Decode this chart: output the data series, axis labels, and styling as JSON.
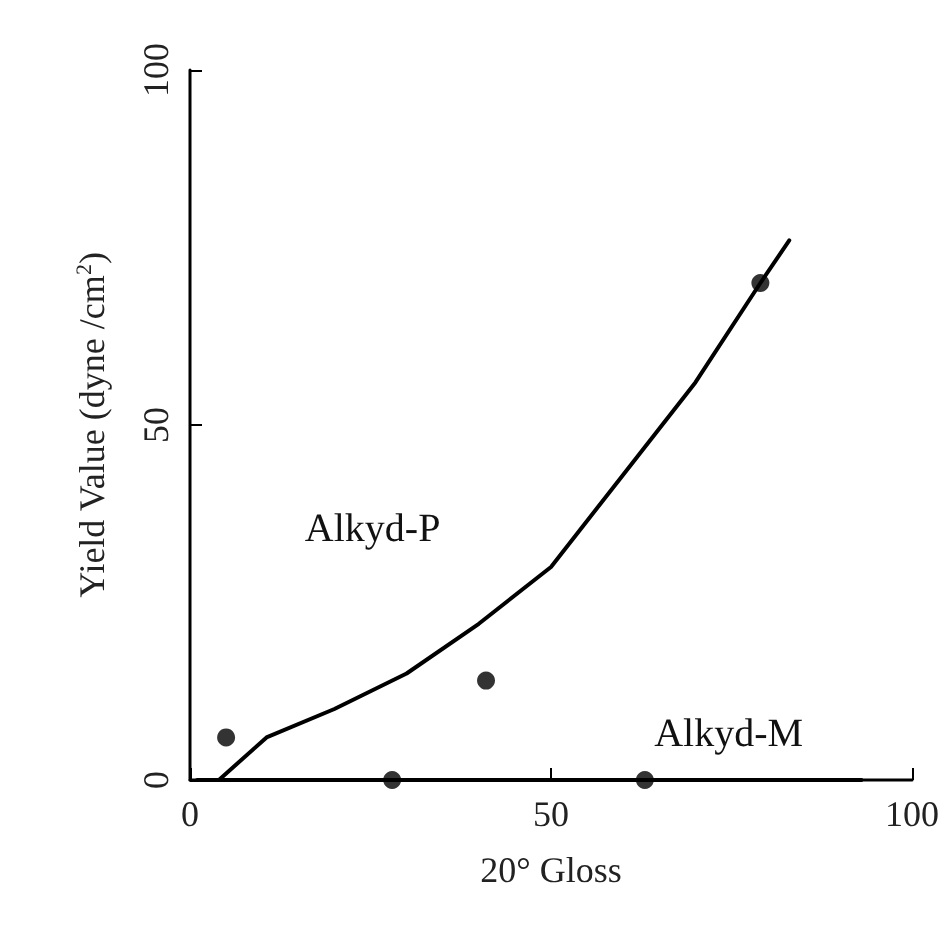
{
  "chart_data": {
    "type": "scatter",
    "xlabel": "20° Gloss",
    "ylabel": "Yield Value (dyne /cm$^{2}$)",
    "xlim": [
      0,
      100
    ],
    "xticks": [
      0,
      50,
      100
    ],
    "ylim": [
      0,
      100
    ],
    "yticks": [
      0,
      50,
      100
    ],
    "grid": false,
    "marker": "circle",
    "series": [
      {
        "color": "#000000",
        "x": [
          5,
          41,
          79
        ],
        "values": [
          6,
          14,
          70
        ]
      },
      {
        "name": "Alkyd-P",
        "type": "line",
        "marker": "none",
        "color": "#000000",
        "x": [
          4,
          10.6,
          20,
          30,
          40,
          50,
          60,
          70,
          79,
          83
        ],
        "values": [
          0,
          6,
          10,
          15,
          22,
          30,
          43,
          56,
          70,
          76
        ]
      },
      {
        "color": "#000000",
        "x": [
          28,
          63
        ],
        "values": [
          0,
          0
        ]
      },
      {
        "name": "Alkyd-M",
        "type": "line",
        "marker": "none",
        "color": "#000000",
        "x": [
          1,
          93
        ],
        "values": [
          0,
          0
        ]
      }
    ]
  }
}
